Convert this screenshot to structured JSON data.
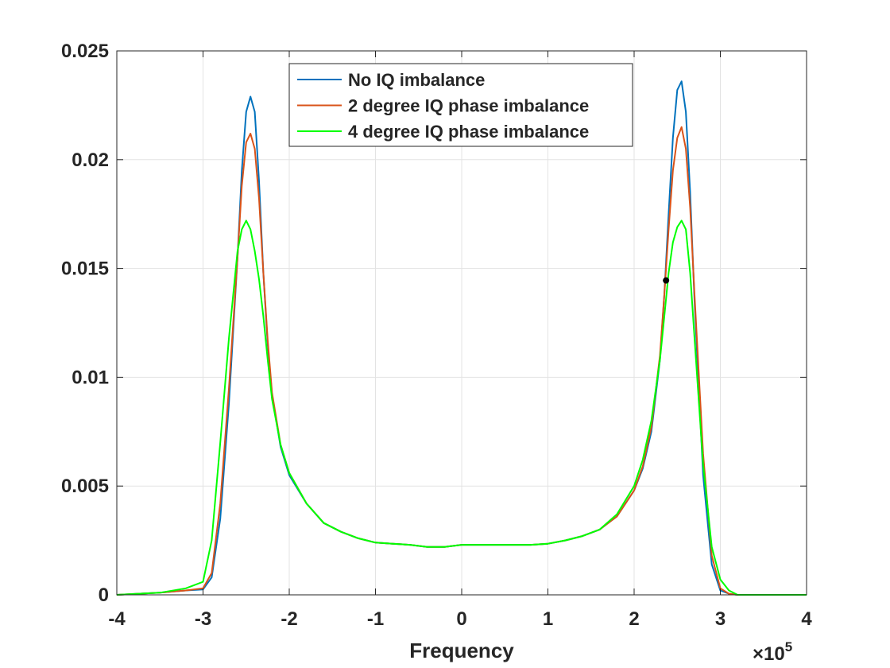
{
  "chart_data": {
    "type": "line",
    "title": "",
    "xlabel": "Frequency",
    "ylabel": "",
    "x_exponent_label": "×10",
    "x_exponent_power": "5",
    "xlim": [
      -400000,
      400000
    ],
    "ylim": [
      0,
      0.025
    ],
    "x_scale": 100000,
    "xticks": [
      -400000,
      -300000,
      -200000,
      -100000,
      0,
      100000,
      200000,
      300000,
      400000
    ],
    "xtick_labels": [
      "-4",
      "-3",
      "-2",
      "-1",
      "0",
      "1",
      "2",
      "3",
      "4"
    ],
    "yticks": [
      0,
      0.005,
      0.01,
      0.015,
      0.02,
      0.025
    ],
    "ytick_labels": [
      "0",
      "0.005",
      "0.01",
      "0.015",
      "0.02",
      "0.025"
    ],
    "grid": true,
    "legend_position": "top-center",
    "series": [
      {
        "name": "No IQ imbalance",
        "color": "#0072BD",
        "x": [
          -400000,
          -350000,
          -320000,
          -300000,
          -290000,
          -280000,
          -270000,
          -260000,
          -255000,
          -250000,
          -245000,
          -240000,
          -235000,
          -230000,
          -225000,
          -220000,
          -210000,
          -200000,
          -180000,
          -160000,
          -140000,
          -120000,
          -100000,
          -80000,
          -60000,
          -40000,
          -20000,
          0,
          20000,
          40000,
          60000,
          80000,
          100000,
          120000,
          140000,
          160000,
          180000,
          200000,
          210000,
          220000,
          230000,
          235000,
          240000,
          245000,
          250000,
          255000,
          260000,
          265000,
          270000,
          280000,
          290000,
          300000,
          310000,
          320000,
          350000,
          400000
        ],
        "y": [
          0,
          0.0001,
          0.0002,
          0.00025,
          0.0008,
          0.0035,
          0.0088,
          0.0155,
          0.0195,
          0.0222,
          0.0229,
          0.0222,
          0.019,
          0.0148,
          0.0115,
          0.0092,
          0.0068,
          0.0055,
          0.0042,
          0.0033,
          0.0029,
          0.0026,
          0.0024,
          0.00235,
          0.0023,
          0.0022,
          0.0022,
          0.0023,
          0.0023,
          0.0023,
          0.0023,
          0.0023,
          0.00235,
          0.0025,
          0.0027,
          0.003,
          0.0036,
          0.0048,
          0.0058,
          0.0075,
          0.0108,
          0.0138,
          0.0175,
          0.021,
          0.0232,
          0.0236,
          0.0222,
          0.0185,
          0.0135,
          0.0055,
          0.0014,
          0.0002,
          5e-05,
          0,
          0,
          0
        ]
      },
      {
        "name": "2 degree IQ phase imbalance",
        "color": "#D95319",
        "x": [
          -400000,
          -350000,
          -320000,
          -300000,
          -290000,
          -280000,
          -270000,
          -260000,
          -255000,
          -250000,
          -245000,
          -240000,
          -235000,
          -230000,
          -225000,
          -220000,
          -210000,
          -200000,
          -180000,
          -160000,
          -140000,
          -120000,
          -100000,
          -80000,
          -60000,
          -40000,
          -20000,
          0,
          20000,
          40000,
          60000,
          80000,
          100000,
          120000,
          140000,
          160000,
          180000,
          200000,
          210000,
          220000,
          230000,
          235000,
          240000,
          245000,
          250000,
          255000,
          260000,
          265000,
          270000,
          280000,
          290000,
          300000,
          310000,
          320000,
          350000,
          400000
        ],
        "y": [
          0,
          0.0001,
          0.0002,
          0.0003,
          0.001,
          0.0042,
          0.0095,
          0.0155,
          0.0188,
          0.0208,
          0.0212,
          0.0205,
          0.0182,
          0.0148,
          0.0117,
          0.0093,
          0.0069,
          0.0056,
          0.0042,
          0.0033,
          0.0029,
          0.0026,
          0.0024,
          0.00235,
          0.0023,
          0.0022,
          0.0022,
          0.0023,
          0.0023,
          0.0023,
          0.0023,
          0.0023,
          0.00235,
          0.0025,
          0.0027,
          0.003,
          0.0036,
          0.0048,
          0.0059,
          0.0077,
          0.011,
          0.0138,
          0.0168,
          0.0195,
          0.021,
          0.0215,
          0.0205,
          0.0178,
          0.0138,
          0.0065,
          0.0018,
          0.0003,
          5e-05,
          0,
          0,
          0
        ]
      },
      {
        "name": "4 degree IQ phase imbalance",
        "color": "#00FF00",
        "x": [
          -400000,
          -350000,
          -320000,
          -300000,
          -290000,
          -280000,
          -270000,
          -260000,
          -255000,
          -250000,
          -245000,
          -240000,
          -235000,
          -230000,
          -225000,
          -220000,
          -210000,
          -200000,
          -180000,
          -160000,
          -140000,
          -120000,
          -100000,
          -80000,
          -60000,
          -40000,
          -20000,
          0,
          20000,
          40000,
          60000,
          80000,
          100000,
          120000,
          140000,
          160000,
          180000,
          200000,
          210000,
          220000,
          230000,
          235000,
          240000,
          245000,
          250000,
          255000,
          260000,
          265000,
          270000,
          280000,
          290000,
          300000,
          310000,
          320000,
          350000,
          400000
        ],
        "y": [
          0,
          0.0001,
          0.0003,
          0.0006,
          0.0025,
          0.007,
          0.0118,
          0.0158,
          0.0168,
          0.0172,
          0.0168,
          0.0158,
          0.0145,
          0.0128,
          0.0108,
          0.009,
          0.0069,
          0.0056,
          0.0042,
          0.0033,
          0.0029,
          0.0026,
          0.0024,
          0.00235,
          0.0023,
          0.0022,
          0.0022,
          0.0023,
          0.0023,
          0.0023,
          0.0023,
          0.0023,
          0.00235,
          0.0025,
          0.0027,
          0.003,
          0.0037,
          0.005,
          0.0062,
          0.008,
          0.0108,
          0.0128,
          0.0148,
          0.0162,
          0.0169,
          0.0172,
          0.0168,
          0.0148,
          0.0118,
          0.006,
          0.0022,
          0.0007,
          0.0002,
          0,
          0,
          0
        ]
      }
    ],
    "markers": [
      {
        "x": 237000,
        "y": 0.01445,
        "color": "#000000"
      }
    ]
  }
}
